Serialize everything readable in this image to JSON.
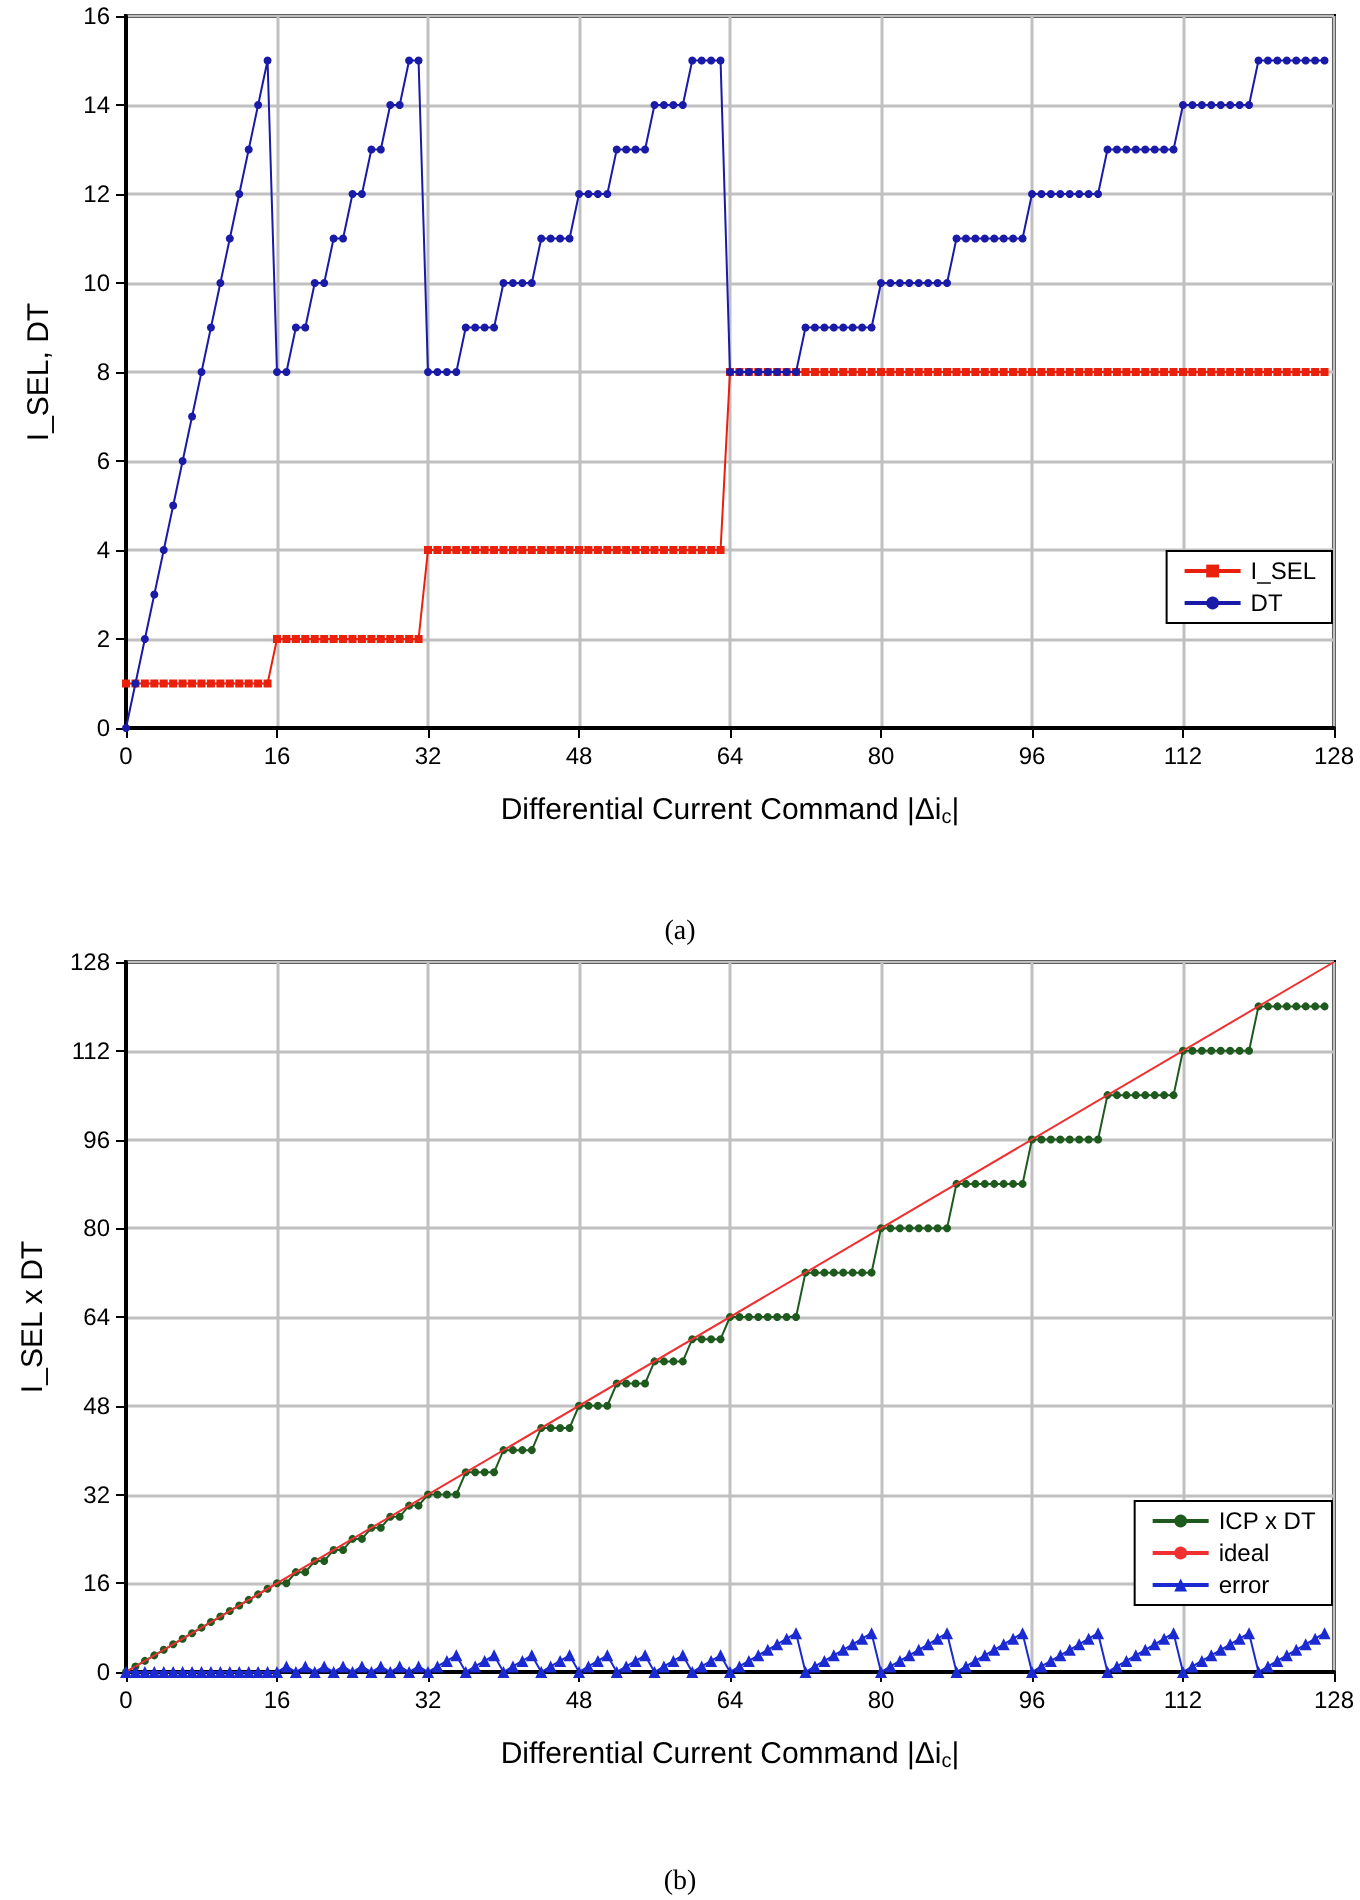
{
  "chart_data": [
    {
      "type": "line",
      "xlabel": "Differential Current Command |Δi$_{c}$|",
      "ylabel": "I_SEL, DT",
      "annotations": [
        "(a)"
      ],
      "xlim": [
        0,
        128
      ],
      "xticks": [
        0,
        16,
        32,
        48,
        64,
        80,
        96,
        112,
        128
      ],
      "ylim": [
        0,
        16
      ],
      "yticks": [
        0,
        2,
        4,
        6,
        8,
        10,
        12,
        14,
        16
      ],
      "grid": true,
      "legend": "right",
      "line_style": "solid",
      "x": [
        0,
        1,
        2,
        3,
        4,
        5,
        6,
        7,
        8,
        9,
        10,
        11,
        12,
        13,
        14,
        15,
        16,
        17,
        18,
        19,
        20,
        21,
        22,
        23,
        24,
        25,
        26,
        27,
        28,
        29,
        30,
        31,
        32,
        33,
        34,
        35,
        36,
        37,
        38,
        39,
        40,
        41,
        42,
        43,
        44,
        45,
        46,
        47,
        48,
        49,
        50,
        51,
        52,
        53,
        54,
        55,
        56,
        57,
        58,
        59,
        60,
        61,
        62,
        63,
        64,
        65,
        66,
        67,
        68,
        69,
        70,
        71,
        72,
        73,
        74,
        75,
        76,
        77,
        78,
        79,
        80,
        81,
        82,
        83,
        84,
        85,
        86,
        87,
        88,
        89,
        90,
        91,
        92,
        93,
        94,
        95,
        96,
        97,
        98,
        99,
        100,
        101,
        102,
        103,
        104,
        105,
        106,
        107,
        108,
        109,
        110,
        111,
        112,
        113,
        114,
        115,
        116,
        117,
        118,
        119,
        120,
        121,
        122,
        123,
        124,
        125,
        126,
        127
      ],
      "series": [
        {
          "name": "I_SEL",
          "color": "#e8200c",
          "marker": "square",
          "values": [
            1,
            1,
            1,
            1,
            1,
            1,
            1,
            1,
            1,
            1,
            1,
            1,
            1,
            1,
            1,
            1,
            2,
            2,
            2,
            2,
            2,
            2,
            2,
            2,
            2,
            2,
            2,
            2,
            2,
            2,
            2,
            2,
            4,
            4,
            4,
            4,
            4,
            4,
            4,
            4,
            4,
            4,
            4,
            4,
            4,
            4,
            4,
            4,
            4,
            4,
            4,
            4,
            4,
            4,
            4,
            4,
            4,
            4,
            4,
            4,
            4,
            4,
            4,
            4,
            8,
            8,
            8,
            8,
            8,
            8,
            8,
            8,
            8,
            8,
            8,
            8,
            8,
            8,
            8,
            8,
            8,
            8,
            8,
            8,
            8,
            8,
            8,
            8,
            8,
            8,
            8,
            8,
            8,
            8,
            8,
            8,
            8,
            8,
            8,
            8,
            8,
            8,
            8,
            8,
            8,
            8,
            8,
            8,
            8,
            8,
            8,
            8,
            8,
            8,
            8,
            8,
            8,
            8,
            8,
            8,
            8,
            8,
            8,
            8,
            8,
            8,
            8,
            8
          ]
        },
        {
          "name": "DT",
          "color": "#1a1aa8",
          "marker": "circle",
          "values": [
            0,
            1,
            2,
            3,
            4,
            5,
            6,
            7,
            8,
            9,
            10,
            11,
            12,
            13,
            14,
            15,
            8,
            8,
            9,
            9,
            10,
            10,
            11,
            11,
            12,
            12,
            13,
            13,
            14,
            14,
            15,
            15,
            8,
            8,
            8,
            8,
            9,
            9,
            9,
            9,
            10,
            10,
            10,
            10,
            11,
            11,
            11,
            11,
            12,
            12,
            12,
            12,
            13,
            13,
            13,
            13,
            14,
            14,
            14,
            14,
            15,
            15,
            15,
            15,
            8,
            8,
            8,
            8,
            8,
            8,
            8,
            8,
            9,
            9,
            9,
            9,
            9,
            9,
            9,
            9,
            10,
            10,
            10,
            10,
            10,
            10,
            10,
            10,
            11,
            11,
            11,
            11,
            11,
            11,
            11,
            11,
            12,
            12,
            12,
            12,
            12,
            12,
            12,
            12,
            13,
            13,
            13,
            13,
            13,
            13,
            13,
            13,
            14,
            14,
            14,
            14,
            14,
            14,
            14,
            14,
            15,
            15,
            15,
            15,
            15,
            15,
            15,
            15
          ]
        }
      ]
    },
    {
      "type": "line",
      "xlabel": "Differential Current Command |Δi$_{c}$|",
      "ylabel": "I_SEL x DT",
      "annotations": [
        "(b)"
      ],
      "xlim": [
        0,
        128
      ],
      "xticks": [
        0,
        16,
        32,
        48,
        64,
        80,
        96,
        112,
        128
      ],
      "ylim": [
        0,
        128
      ],
      "yticks": [
        0,
        16,
        32,
        48,
        64,
        80,
        96,
        112,
        128
      ],
      "grid": true,
      "legend": "right",
      "line_style": "solid",
      "x": [
        0,
        1,
        2,
        3,
        4,
        5,
        6,
        7,
        8,
        9,
        10,
        11,
        12,
        13,
        14,
        15,
        16,
        17,
        18,
        19,
        20,
        21,
        22,
        23,
        24,
        25,
        26,
        27,
        28,
        29,
        30,
        31,
        32,
        33,
        34,
        35,
        36,
        37,
        38,
        39,
        40,
        41,
        42,
        43,
        44,
        45,
        46,
        47,
        48,
        49,
        50,
        51,
        52,
        53,
        54,
        55,
        56,
        57,
        58,
        59,
        60,
        61,
        62,
        63,
        64,
        65,
        66,
        67,
        68,
        69,
        70,
        71,
        72,
        73,
        74,
        75,
        76,
        77,
        78,
        79,
        80,
        81,
        82,
        83,
        84,
        85,
        86,
        87,
        88,
        89,
        90,
        91,
        92,
        93,
        94,
        95,
        96,
        97,
        98,
        99,
        100,
        101,
        102,
        103,
        104,
        105,
        106,
        107,
        108,
        109,
        110,
        111,
        112,
        113,
        114,
        115,
        116,
        117,
        118,
        119,
        120,
        121,
        122,
        123,
        124,
        125,
        126,
        127
      ],
      "series": [
        {
          "name": "ICP x DT",
          "color": "#1e5a1e",
          "marker": "circle",
          "values": [
            0,
            1,
            2,
            3,
            4,
            5,
            6,
            7,
            8,
            9,
            10,
            11,
            12,
            13,
            14,
            15,
            16,
            16,
            18,
            18,
            20,
            20,
            22,
            22,
            24,
            24,
            26,
            26,
            28,
            28,
            30,
            30,
            32,
            32,
            32,
            32,
            36,
            36,
            36,
            36,
            40,
            40,
            40,
            40,
            44,
            44,
            44,
            44,
            48,
            48,
            48,
            48,
            52,
            52,
            52,
            52,
            56,
            56,
            56,
            56,
            60,
            60,
            60,
            60,
            64,
            64,
            64,
            64,
            64,
            64,
            64,
            64,
            72,
            72,
            72,
            72,
            72,
            72,
            72,
            72,
            80,
            80,
            80,
            80,
            80,
            80,
            80,
            80,
            88,
            88,
            88,
            88,
            88,
            88,
            88,
            88,
            96,
            96,
            96,
            96,
            96,
            96,
            96,
            96,
            104,
            104,
            104,
            104,
            104,
            104,
            104,
            104,
            112,
            112,
            112,
            112,
            112,
            112,
            112,
            112,
            120,
            120,
            120,
            120,
            120,
            120,
            120,
            120
          ]
        },
        {
          "name": "ideal",
          "color": "#f03030",
          "marker": "none",
          "x": [
            0,
            128
          ],
          "values": [
            0,
            128
          ]
        },
        {
          "name": "error",
          "color": "#1a2ad0",
          "marker": "triangle",
          "values": [
            0,
            0,
            0,
            0,
            0,
            0,
            0,
            0,
            0,
            0,
            0,
            0,
            0,
            0,
            0,
            0,
            0,
            1,
            0,
            1,
            0,
            1,
            0,
            1,
            0,
            1,
            0,
            1,
            0,
            1,
            0,
            1,
            0,
            1,
            2,
            3,
            0,
            1,
            2,
            3,
            0,
            1,
            2,
            3,
            0,
            1,
            2,
            3,
            0,
            1,
            2,
            3,
            0,
            1,
            2,
            3,
            0,
            1,
            2,
            3,
            0,
            1,
            2,
            3,
            0,
            1,
            2,
            3,
            4,
            5,
            6,
            7,
            0,
            1,
            2,
            3,
            4,
            5,
            6,
            7,
            0,
            1,
            2,
            3,
            4,
            5,
            6,
            7,
            0,
            1,
            2,
            3,
            4,
            5,
            6,
            7,
            0,
            1,
            2,
            3,
            4,
            5,
            6,
            7,
            0,
            1,
            2,
            3,
            4,
            5,
            6,
            7,
            0,
            1,
            2,
            3,
            4,
            5,
            6,
            7,
            0,
            1,
            2,
            3,
            4,
            5,
            6,
            7
          ]
        }
      ]
    }
  ]
}
